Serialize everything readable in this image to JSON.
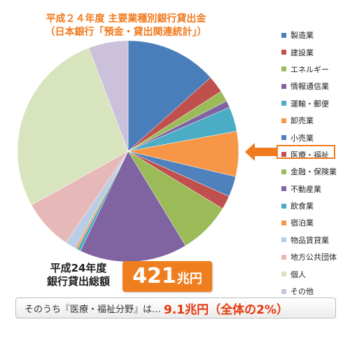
{
  "title": {
    "line1": "平成２４年度 主要業種別銀行貸出金",
    "line2": "（日本銀行「預金・貸出関連統計」）"
  },
  "total": {
    "label_line1": "平成24年度",
    "label_line2": "銀行貸出総額",
    "value": "421",
    "unit": "兆円"
  },
  "summary": {
    "prefix": "そのうち『医療・福祉分野』は…",
    "highlight": "9.1兆円（全体の2%）"
  },
  "chart_data": {
    "type": "pie",
    "start_angle_deg": 0,
    "direction": "clockwise",
    "unit": "%",
    "highlighted": "医療・福祉",
    "slices": [
      {
        "name": "製造業",
        "value": 13.4,
        "color": "#4a7ebb"
      },
      {
        "name": "建設業",
        "value": 2.5,
        "color": "#c0504d"
      },
      {
        "name": "エネルギー",
        "value": 1.6,
        "color": "#9bbb59"
      },
      {
        "name": "情報通信業",
        "value": 1.0,
        "color": "#8064a2"
      },
      {
        "name": "運輸・郵便",
        "value": 3.6,
        "color": "#4bacc6"
      },
      {
        "name": "卸売業",
        "value": 6.6,
        "color": "#f79646"
      },
      {
        "name": "小売業",
        "value": 3.0,
        "color": "#4f81bd"
      },
      {
        "name": "医療・福祉",
        "value": 2.0,
        "color": "#c0504d"
      },
      {
        "name": "金融・保険業",
        "value": 7.6,
        "color": "#9bbb59"
      },
      {
        "name": "不動産業",
        "value": 15.8,
        "color": "#8064a2"
      },
      {
        "name": "飲食業",
        "value": 0.5,
        "color": "#4bacc6"
      },
      {
        "name": "宿泊業",
        "value": 0.3,
        "color": "#f79646"
      },
      {
        "name": "物品賃貸業",
        "value": 1.6,
        "color": "#b9cde5"
      },
      {
        "name": "地方公共団体",
        "value": 7.4,
        "color": "#e6b9b8"
      },
      {
        "name": "個人",
        "value": 27.3,
        "color": "#d7e4bd"
      },
      {
        "name": "その他",
        "value": 5.8,
        "color": "#ccc1da"
      }
    ]
  }
}
